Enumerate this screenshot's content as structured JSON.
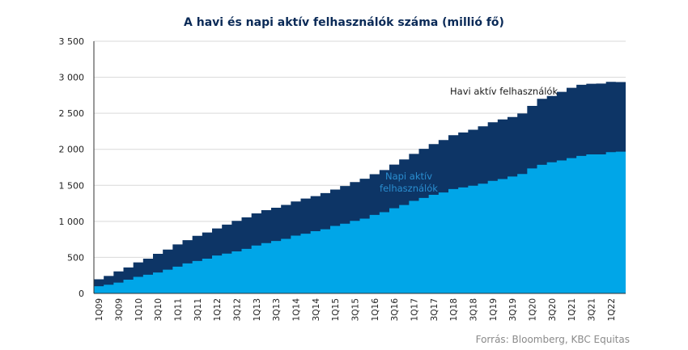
{
  "chart_data": {
    "type": "area",
    "step": true,
    "stacked": false,
    "title": "A havi és napi aktív felhasználók száma (millió fő)",
    "xlabel": "",
    "ylabel": "",
    "ylim": [
      0,
      3500
    ],
    "yticks": [
      0,
      500,
      1000,
      1500,
      2000,
      2500,
      3000,
      3500
    ],
    "ytick_labels": [
      "0",
      "500",
      "1 000",
      "1 500",
      "2 000",
      "2 500",
      "3 000",
      "3 500"
    ],
    "grid": true,
    "x": [
      "1Q09",
      "2Q09",
      "3Q09",
      "4Q09",
      "1Q10",
      "2Q10",
      "3Q10",
      "4Q10",
      "1Q11",
      "2Q11",
      "3Q11",
      "4Q11",
      "1Q12",
      "2Q12",
      "3Q12",
      "4Q12",
      "1Q13",
      "2Q13",
      "3Q13",
      "4Q13",
      "1Q14",
      "2Q14",
      "3Q14",
      "4Q14",
      "1Q15",
      "2Q15",
      "3Q15",
      "4Q15",
      "1Q16",
      "2Q16",
      "3Q16",
      "4Q16",
      "1Q17",
      "2Q17",
      "3Q17",
      "4Q17",
      "1Q18",
      "2Q18",
      "3Q18",
      "4Q18",
      "1Q19",
      "2Q19",
      "3Q19",
      "4Q19",
      "1Q20",
      "2Q20",
      "3Q20",
      "4Q20",
      "1Q21",
      "2Q21",
      "3Q21",
      "4Q21",
      "1Q22",
      "2Q22"
    ],
    "x_tick_labels": [
      "1Q09",
      "3Q09",
      "1Q10",
      "3Q10",
      "1Q11",
      "3Q11",
      "1Q12",
      "3Q12",
      "1Q13",
      "3Q13",
      "1Q14",
      "3Q14",
      "1Q15",
      "3Q15",
      "1Q16",
      "3Q16",
      "1Q17",
      "3Q17",
      "1Q18",
      "3Q18",
      "1Q19",
      "3Q19",
      "1Q20",
      "3Q20",
      "1Q21",
      "3Q21",
      "1Q22"
    ],
    "series": [
      {
        "name": "Havi aktív felhasználók",
        "color": "#0d3566",
        "values": [
          197,
          242,
          305,
          360,
          431,
          482,
          550,
          608,
          680,
          739,
          800,
          845,
          901,
          955,
          1007,
          1056,
          1110,
          1155,
          1189,
          1228,
          1276,
          1317,
          1350,
          1393,
          1441,
          1490,
          1545,
          1591,
          1654,
          1712,
          1788,
          1860,
          1936,
          2006,
          2072,
          2129,
          2196,
          2234,
          2271,
          2320,
          2375,
          2414,
          2449,
          2498,
          2603,
          2701,
          2740,
          2797,
          2853,
          2895,
          2910,
          2912,
          2936,
          2934
        ]
      },
      {
        "name": "Napi aktív felhasználók",
        "color": "#00a6e8",
        "values": [
          100,
          120,
          150,
          190,
          230,
          260,
          290,
          330,
          372,
          417,
          450,
          483,
          526,
          552,
          584,
          618,
          665,
          699,
          728,
          757,
          802,
          829,
          864,
          890,
          936,
          968,
          1007,
          1038,
          1090,
          1128,
          1182,
          1227,
          1284,
          1325,
          1368,
          1401,
          1449,
          1471,
          1495,
          1523,
          1562,
          1587,
          1623,
          1657,
          1734,
          1785,
          1820,
          1845,
          1878,
          1908,
          1930,
          1929,
          1960,
          1968
        ]
      }
    ],
    "annotations": [
      {
        "text_lines": [
          "Havi aktív felhasználók"
        ],
        "color": "#1a1a1a"
      },
      {
        "text_lines": [
          "Napi aktív",
          "felhasználók"
        ],
        "color": "#2a8ed0"
      }
    ],
    "source": "Forrás: Bloomberg, KBC Equitas"
  }
}
